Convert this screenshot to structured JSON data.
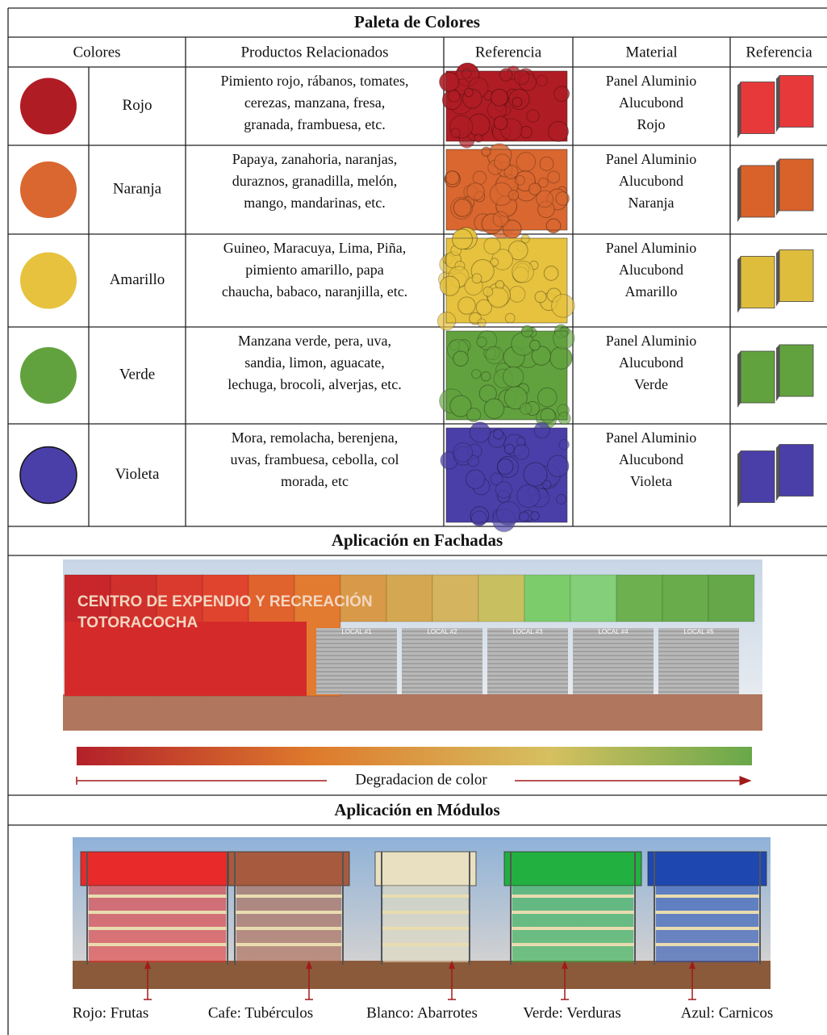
{
  "title": "Paleta de Colores",
  "table": {
    "headers": [
      "Colores",
      "Productos Relacionados",
      "Referencia",
      "Material",
      "Referencia"
    ],
    "rows": [
      {
        "color": "#b01c24",
        "panel_color": "#e8393a",
        "name": "Rojo",
        "products": [
          "Pimiento rojo, rábanos, tomates,",
          "cerezas, manzana, fresa,",
          "granada, frambuesa, etc."
        ],
        "material": [
          "Panel Aluminio",
          "Alucubond",
          "Rojo"
        ]
      },
      {
        "color": "#d9672f",
        "panel_color": "#d9622a",
        "name": "Naranja",
        "products": [
          "Papaya, zanahoria, naranjas,",
          "duraznos, granadilla, melón,",
          "mango, mandarinas, etc."
        ],
        "material": [
          "Panel Aluminio",
          "Alucubond",
          "Naranja"
        ]
      },
      {
        "color": "#e6c23e",
        "panel_color": "#dfbd3c",
        "name": "Amarillo",
        "products": [
          "Guineo, Maracuya, Lima, Piña,",
          "pimiento amarillo, papa",
          "chaucha, babaco, naranjilla, etc."
        ],
        "material": [
          "Panel Aluminio",
          "Alucubond",
          "Amarillo"
        ]
      },
      {
        "color": "#62a23e",
        "panel_color": "#62a23e",
        "name": "Verde",
        "products": [
          "Manzana verde, pera, uva,",
          "sandia, limon, aguacate,",
          "lechuga, brocoli, alverjas, etc."
        ],
        "material": [
          "Panel Aluminio",
          "Alucubond",
          "Verde"
        ]
      },
      {
        "color": "#4a3fa8",
        "panel_color": "#4a3fa8",
        "name": "Violeta",
        "products": [
          "Mora, remolacha, berenjena,",
          "uvas, frambuesa, cebolla, col",
          "morada, etc"
        ],
        "material": [
          "Panel Aluminio",
          "Alucubond",
          "Violeta"
        ]
      }
    ]
  },
  "facade": {
    "title": "Aplicación en Fachadas",
    "sign": [
      "CENTRO DE EXPENDIO Y RECREACIÓN",
      "TOTORACOCHA"
    ],
    "locals": [
      "LOCAL #1",
      "LOCAL #2",
      "LOCAL #3",
      "LOCAL #4",
      "LOCAL #5"
    ],
    "gradient_label": "Degradacion de color"
  },
  "modules": {
    "title": "Aplicación en Módulos",
    "labels": [
      "Rojo: Frutas",
      "Cafe: Tubérculos",
      "Blanco: Abarrotes",
      "Verde: Verduras",
      "Azul: Carnicos"
    ],
    "colors": [
      "#e82a2a",
      "#a85a3e",
      "#e8e0c0",
      "#22b040",
      "#1e48b0"
    ]
  }
}
